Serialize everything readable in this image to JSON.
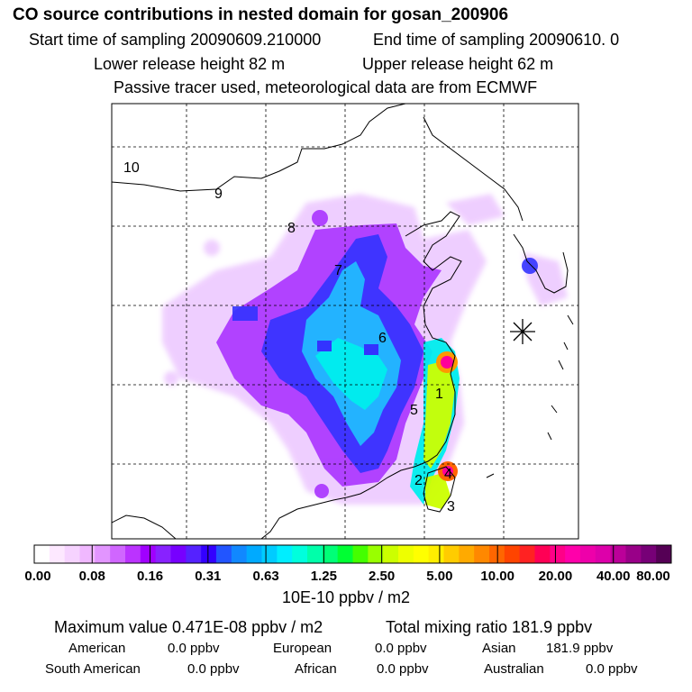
{
  "header": {
    "title": "CO  source contributions in nested domain for gosan_200906",
    "start_label": "Start time of sampling 20090609.210000",
    "end_label": "End time of sampling 20090610.     0",
    "lower_height": "Lower release height   82 m",
    "upper_height": "Upper release height   62 m",
    "tracer_note": "Passive tracer used, meteorological data are from ECMWF"
  },
  "map": {
    "region_labels": [
      "10",
      "9",
      "8",
      "7",
      "6",
      "5",
      "1",
      "2",
      "4",
      "3"
    ],
    "colors": {
      "low": "#e6b3ff",
      "violet": "#9933ff",
      "blue": "#3333ff",
      "light_blue": "#33bbff",
      "cyan": "#00eeee",
      "yellow": "#ffff00",
      "orange": "#ff9900",
      "magenta": "#ff0099"
    }
  },
  "colorbar": {
    "ticks": [
      "0.00",
      "0.08",
      "0.16",
      "0.31",
      "0.63",
      "1.25",
      "2.50",
      "5.00",
      "10.00",
      "20.00",
      "40.00",
      "80.00"
    ],
    "unit": "10E-10 ppbv / m2",
    "colors": [
      "#ffffff",
      "#fde8ff",
      "#f6d3ff",
      "#f0b8ff",
      "#e295ff",
      "#d066ff",
      "#bb33ff",
      "#a000ff",
      "#8822ff",
      "#7700ff",
      "#5522ff",
      "#3300ff",
      "#2255ff",
      "#1188ff",
      "#00aaff",
      "#00ccff",
      "#00eeff",
      "#00ffdd",
      "#00ffaa",
      "#00ff77",
      "#00ff33",
      "#44ff00",
      "#99ff00",
      "#ccff00",
      "#eeff00",
      "#ffff00",
      "#ffee00",
      "#ffcc00",
      "#ffaa00",
      "#ff8800",
      "#ff6600",
      "#ff4400",
      "#ff2222",
      "#ff0055",
      "#ff0088",
      "#ff00aa",
      "#ee00aa",
      "#dd00aa",
      "#bb0099",
      "#990088",
      "#770077",
      "#550055"
    ]
  },
  "stats": {
    "max_value": "Maximum value  0.471E-08 ppbv / m2",
    "total_ratio": "Total mixing ratio      181.9 ppbv",
    "american": "American",
    "american_val": "0.0 ppbv",
    "european": "European",
    "european_val": "0.0 ppbv",
    "asian": "Asian",
    "asian_val": "181.9 ppbv",
    "south_american": "South American",
    "south_american_val": "0.0 ppbv",
    "african": "African",
    "african_val": "0.0 ppbv",
    "australian": "Australian",
    "australian_val": "0.0 ppbv"
  }
}
